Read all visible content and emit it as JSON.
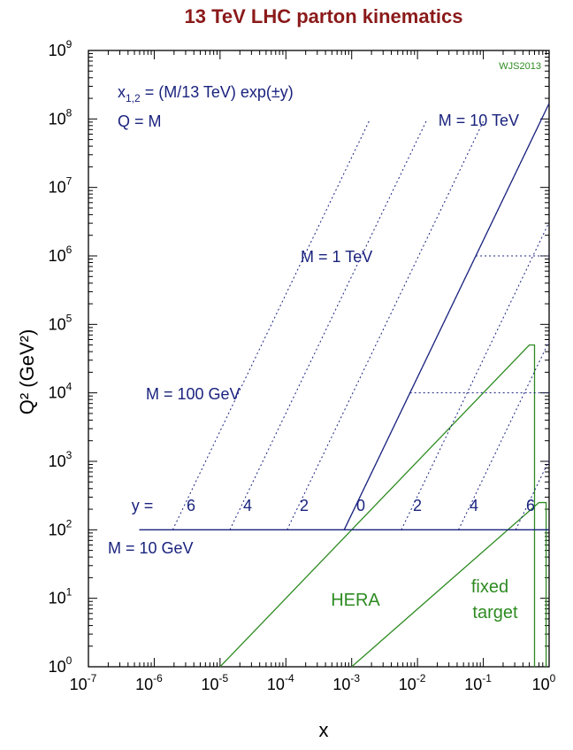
{
  "chart_data": {
    "type": "line",
    "title": "13 TeV LHC parton kinematics",
    "xlabel": "x",
    "ylabel": "Q²  (GeV²)",
    "x_scale": "log",
    "y_scale": "log",
    "xlim": [
      1e-07,
      1
    ],
    "ylim": [
      1,
      1000000000.0
    ],
    "x_ticks": [
      {
        "base": "10",
        "exp": "-7"
      },
      {
        "base": "10",
        "exp": "-6"
      },
      {
        "base": "10",
        "exp": "-5"
      },
      {
        "base": "10",
        "exp": "-4"
      },
      {
        "base": "10",
        "exp": "-3"
      },
      {
        "base": "10",
        "exp": "-2"
      },
      {
        "base": "10",
        "exp": "-1"
      },
      {
        "base": "10",
        "exp": "0"
      }
    ],
    "y_ticks": [
      {
        "base": "10",
        "exp": "0"
      },
      {
        "base": "10",
        "exp": "1"
      },
      {
        "base": "10",
        "exp": "2"
      },
      {
        "base": "10",
        "exp": "3"
      },
      {
        "base": "10",
        "exp": "4"
      },
      {
        "base": "10",
        "exp": "5"
      },
      {
        "base": "10",
        "exp": "6"
      },
      {
        "base": "10",
        "exp": "7"
      },
      {
        "base": "10",
        "exp": "8"
      },
      {
        "base": "10",
        "exp": "9"
      }
    ],
    "sqrt_s_gev": 13000,
    "mass_lines": [
      {
        "label": "M = 10 GeV",
        "M_gev": 10,
        "style": "solid"
      },
      {
        "label": "M = 100 GeV",
        "M_gev": 100,
        "style": "dotted"
      },
      {
        "label": "M = 1 TeV",
        "M_gev": 1000,
        "style": "dotted"
      },
      {
        "label": "M = 10 TeV",
        "M_gev": 10000,
        "style": "solid"
      }
    ],
    "rapidity_lines": [
      -6,
      -4,
      -2,
      0,
      2,
      4,
      6
    ],
    "rapidity_labels": [
      "y =",
      "6",
      "4",
      "2",
      "0",
      "2",
      "4",
      "6"
    ],
    "annotations": {
      "formula_main": "x",
      "formula_sub": "1,2",
      "formula_rest": " = (M/13 TeV) exp(±y)",
      "q_eq_m": "Q = M",
      "credit": "WJS2013"
    },
    "regions": [
      {
        "name": "HERA",
        "boundary": [
          [
            1e-05,
            1
          ],
          [
            0.5,
            50000.0
          ],
          [
            0.6,
            50000.0
          ],
          [
            0.6,
            1
          ]
        ]
      },
      {
        "name": "fixed target",
        "label_lines": [
          "fixed",
          "target"
        ],
        "boundary": [
          [
            0.001,
            1
          ],
          [
            0.7,
            250
          ],
          [
            0.9,
            250
          ],
          [
            0.9,
            1
          ]
        ]
      }
    ],
    "colors": {
      "title": "#8b1a1a",
      "lhc": "#1a237e",
      "green": "#2e8b22",
      "axes": "#000000"
    },
    "grid": false,
    "legend": "none"
  }
}
